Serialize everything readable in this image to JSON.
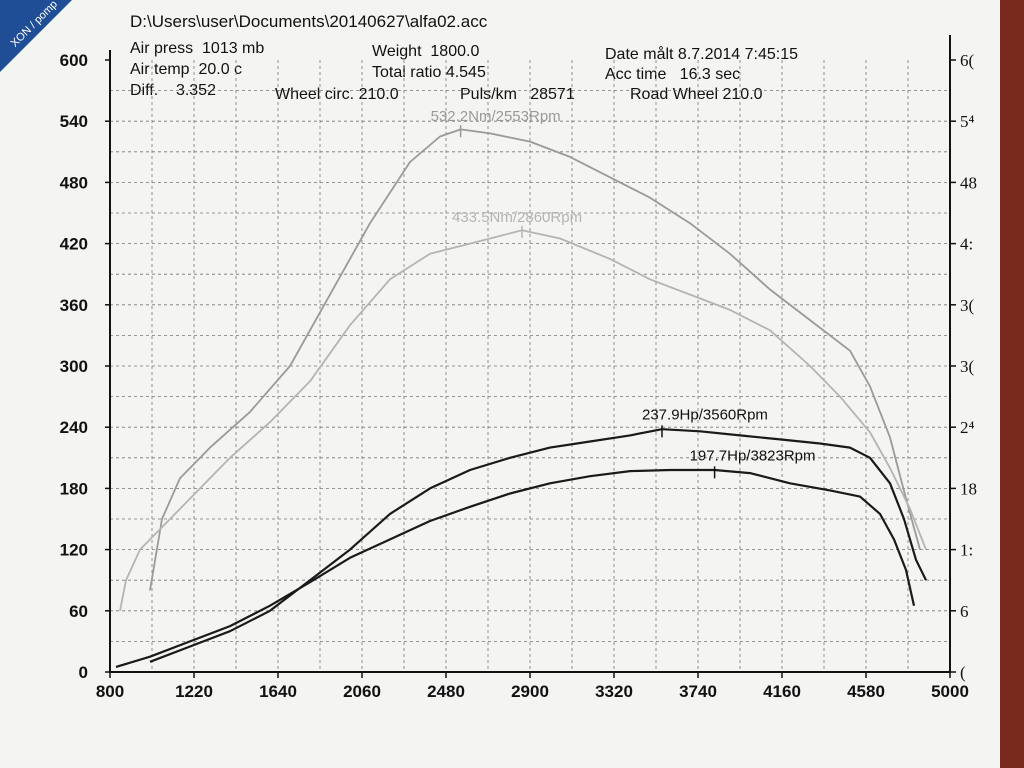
{
  "header": {
    "file": "D:\\Users\\user\\Documents\\20140627\\alfa02.acc",
    "air_press": "Air press  1013 mb",
    "air_temp": "Air temp  20.0 c",
    "diff": "Diff.    3.352",
    "weight": "Weight  1800.0",
    "total_ratio": "Total ratio 4.545",
    "wheel_circ": "Wheel circ. 210.0",
    "puls_km": "Puls/km   28571",
    "road_wheel": "Road Wheel 210.0",
    "date": "Date målt 8.7.2014 7:45:15",
    "acc_time": "Acc time   16.3 sec"
  },
  "corner_label": "XON / pomp",
  "chart_data": {
    "type": "line",
    "xlim": [
      800,
      5000
    ],
    "ylim": [
      0,
      600
    ],
    "x_ticks": [
      "800",
      "1220",
      "1640",
      "2060",
      "2480",
      "2900",
      "3320",
      "3740",
      "4160",
      "4580",
      "5000"
    ],
    "y_ticks": [
      "0",
      "60",
      "120",
      "180",
      "240",
      "300",
      "360",
      "420",
      "480",
      "540",
      "600"
    ],
    "right_ticks": [
      "(",
      "6",
      "1:",
      "18",
      "2⁴",
      "3(",
      "3(",
      "4:",
      "48",
      "5⁴",
      "6("
    ],
    "grid": true,
    "annotations": [
      {
        "text": "532.2Nm/2553Rpm",
        "x": 2553,
        "y": 532.2
      },
      {
        "text": "433.5Nm/2860Rpm",
        "x": 2860,
        "y": 433.5
      },
      {
        "text": "237.9Hp/3560Rpm",
        "x": 3560,
        "y": 237.9
      },
      {
        "text": "197.7Hp/3823Rpm",
        "x": 3823,
        "y": 197.7
      }
    ],
    "series": [
      {
        "color": "#9a9a9a",
        "x": [
          1000,
          1060,
          1150,
          1300,
          1500,
          1700,
          1900,
          2100,
          2300,
          2450,
          2553,
          2700,
          2900,
          3100,
          3300,
          3500,
          3700,
          3900,
          4100,
          4300,
          4500,
          4600,
          4700,
          4780,
          4850
        ],
        "y": [
          80,
          150,
          190,
          220,
          255,
          300,
          370,
          440,
          500,
          525,
          532,
          528,
          520,
          505,
          485,
          465,
          440,
          410,
          375,
          345,
          315,
          280,
          230,
          170,
          120
        ]
      },
      {
        "color": "#b4b4b4",
        "x": [
          850,
          880,
          950,
          1050,
          1200,
          1400,
          1600,
          1800,
          2000,
          2200,
          2400,
          2600,
          2860,
          3050,
          3300,
          3500,
          3700,
          3900,
          4100,
          4300,
          4450,
          4600,
          4700,
          4800,
          4880
        ],
        "y": [
          60,
          90,
          120,
          140,
          170,
          210,
          245,
          285,
          340,
          385,
          410,
          420,
          433,
          425,
          405,
          385,
          370,
          355,
          335,
          300,
          270,
          235,
          200,
          160,
          120
        ]
      },
      {
        "color": "#1a1a1a",
        "x": [
          1000,
          1200,
          1400,
          1600,
          1800,
          2000,
          2200,
          2400,
          2600,
          2800,
          3000,
          3200,
          3400,
          3560,
          3750,
          3950,
          4150,
          4350,
          4500,
          4600,
          4700,
          4770,
          4830,
          4880
        ],
        "y": [
          10,
          25,
          40,
          60,
          90,
          120,
          155,
          180,
          198,
          210,
          220,
          226,
          232,
          238,
          236,
          232,
          228,
          224,
          220,
          210,
          185,
          150,
          110,
          90
        ]
      },
      {
        "color": "#1a1a1a",
        "x": [
          830,
          1000,
          1200,
          1400,
          1600,
          1800,
          2000,
          2200,
          2400,
          2600,
          2800,
          3000,
          3200,
          3400,
          3600,
          3823,
          4000,
          4200,
          4400,
          4550,
          4650,
          4720,
          4780,
          4820
        ],
        "y": [
          5,
          15,
          30,
          45,
          65,
          88,
          112,
          130,
          148,
          162,
          175,
          185,
          192,
          197,
          198,
          198,
          195,
          185,
          178,
          172,
          155,
          130,
          100,
          65
        ]
      }
    ]
  }
}
